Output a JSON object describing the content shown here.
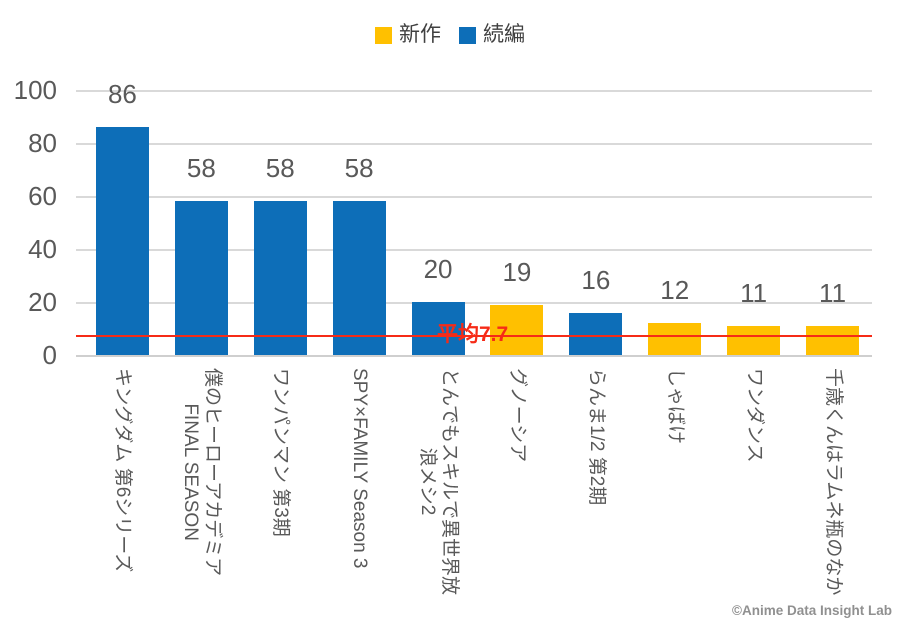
{
  "colors": {
    "new": "#ffc000",
    "sequel": "#0d6eb8",
    "average": "#f62b17",
    "grid": "#d9d9d9",
    "axis": "#cfcfcf",
    "tick_text": "#595959",
    "value_text": "#595959",
    "xlabel_text": "#595959",
    "legend_text": "#404040",
    "watermark_text": "#909090"
  },
  "legend": {
    "items": [
      {
        "label": "新作",
        "key": "new"
      },
      {
        "label": "続編",
        "key": "sequel"
      }
    ]
  },
  "watermark": "©Anime Data Insight Lab",
  "chart_data": {
    "type": "bar",
    "title": "",
    "xlabel": "",
    "ylabel": "",
    "categories": [
      "キングダム 第6シリーズ",
      "僕のヒーローアカデミア\nFINAL SEASON",
      "ワンパンマン 第3期",
      "SPY×FAMILY Season 3",
      "とんでもスキルで異世界放\n浪メシ2",
      "グノーシア",
      "らんま1/2 第2期",
      "しゃばけ",
      "ワンダンス",
      "千歳くんはラムネ瓶のなか"
    ],
    "values": [
      86,
      58,
      58,
      58,
      20,
      19,
      16,
      12,
      11,
      11
    ],
    "series_of_bar": [
      "sequel",
      "sequel",
      "sequel",
      "sequel",
      "sequel",
      "new",
      "sequel",
      "new",
      "new",
      "new"
    ],
    "series": [
      {
        "name": "新作",
        "color": "#ffc000"
      },
      {
        "name": "続編",
        "color": "#0d6eb8"
      }
    ],
    "ylim": [
      0,
      100
    ],
    "yticks": [
      0,
      20,
      40,
      60,
      80,
      100
    ],
    "grid": true,
    "legend_position": "top",
    "average_line": {
      "value": 7.7,
      "label": "平均7.7"
    }
  }
}
